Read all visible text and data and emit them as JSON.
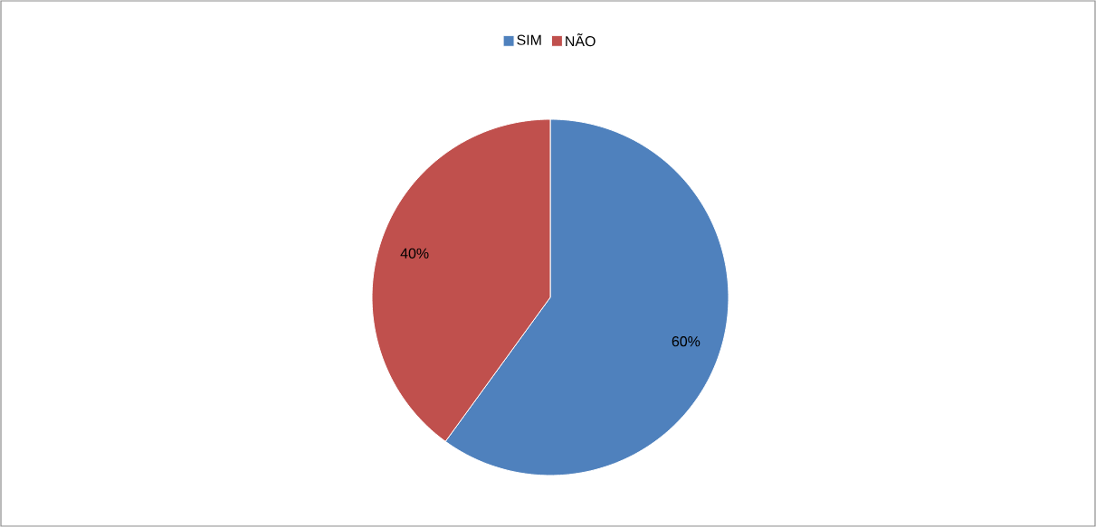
{
  "chart_data": {
    "type": "pie",
    "categories": [
      "SIM",
      "NÃO"
    ],
    "values": [
      60,
      40
    ],
    "colors": [
      "#4f81bd",
      "#c0504d"
    ],
    "value_labels": [
      "60%",
      "40%"
    ],
    "legend": "top"
  }
}
